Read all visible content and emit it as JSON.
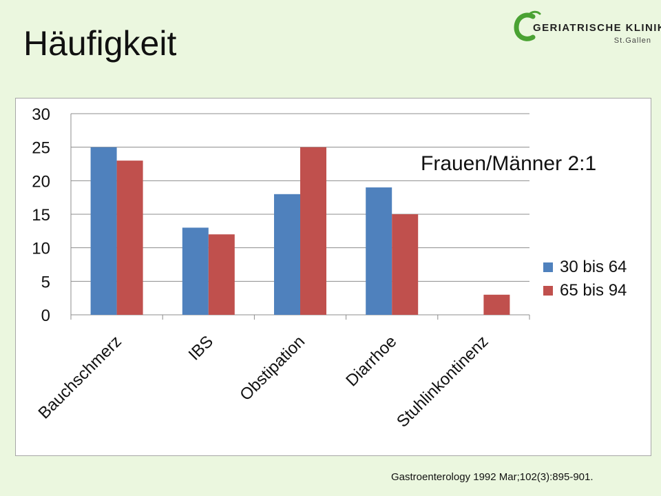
{
  "slide": {
    "title": "Häufigkeit",
    "citation": "Gastroenterology 1992 Mar;102(3):895-901."
  },
  "logo": {
    "name": "GERIATRISCHE KLINIK",
    "location": "St.Gallen",
    "icon": "logo-swirl-icon",
    "color": "#4aa233"
  },
  "chart_data": {
    "type": "bar",
    "categories": [
      "Bauchschmerz",
      "IBS",
      "Obstipation",
      "Diarrhoe",
      "Stuhlinkontinenz"
    ],
    "series": [
      {
        "name": "30 bis 64",
        "color": "#4f81bd",
        "values": [
          25,
          13,
          18,
          19,
          0
        ]
      },
      {
        "name": "65 bis 94",
        "color": "#c0504d",
        "values": [
          23,
          12,
          25,
          15,
          3
        ]
      }
    ],
    "ylim": [
      0,
      30
    ],
    "yticks": [
      0,
      5,
      10,
      15,
      20,
      25,
      30
    ],
    "grid": true,
    "legend_position": "right",
    "annotation": "Frauen/Männer 2:1"
  }
}
